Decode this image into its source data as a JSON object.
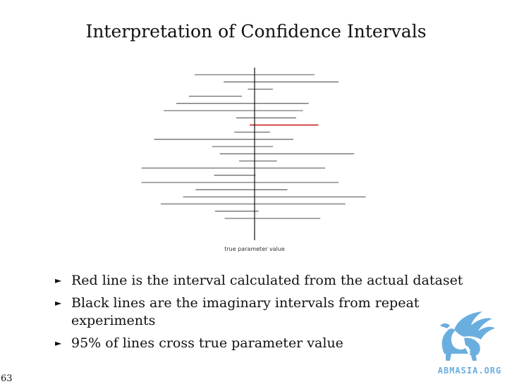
{
  "slide": {
    "title": "Interpretation of Confidence Intervals",
    "page_number": "63"
  },
  "diagram": {
    "axis_caption": "true parameter value",
    "colors": {
      "interval": "#1a1a1a",
      "actual_interval": "#cc2222",
      "axis": "#111111"
    },
    "intervals": [
      {
        "lower": -0.62,
        "upper": 0.62
      },
      {
        "lower": -0.32,
        "upper": 0.87
      },
      {
        "lower": -0.07,
        "upper": 0.19
      },
      {
        "lower": -0.68,
        "upper": -0.13
      },
      {
        "lower": -0.81,
        "upper": 0.56
      },
      {
        "lower": -0.94,
        "upper": 0.5
      },
      {
        "lower": -0.19,
        "upper": 0.43
      },
      {
        "lower": -0.05,
        "upper": 0.66,
        "actual": true
      },
      {
        "lower": -0.21,
        "upper": 0.16
      },
      {
        "lower": -1.04,
        "upper": 0.4
      },
      {
        "lower": -0.44,
        "upper": 0.19
      },
      {
        "lower": -0.36,
        "upper": 1.03
      },
      {
        "lower": -0.16,
        "upper": 0.23
      },
      {
        "lower": -1.17,
        "upper": 0.73
      },
      {
        "lower": -0.42,
        "upper": 0.01
      },
      {
        "lower": -1.17,
        "upper": 0.87
      },
      {
        "lower": -0.61,
        "upper": 0.34
      },
      {
        "lower": -0.74,
        "upper": 1.15
      },
      {
        "lower": -0.97,
        "upper": 0.94
      },
      {
        "lower": -0.41,
        "upper": 0.04
      },
      {
        "lower": -0.31,
        "upper": 0.68
      }
    ]
  },
  "bullets": [
    {
      "marker": "►",
      "text": "Red line is the interval calculated from the actual dataset"
    },
    {
      "marker": "►",
      "text": "Black lines are the imaginary intervals from repeat experiments"
    },
    {
      "marker": "►",
      "text": "95% of lines cross true parameter value"
    }
  ],
  "logo": {
    "text": "ABMASIA.ORG",
    "color": "#6aaee0"
  }
}
